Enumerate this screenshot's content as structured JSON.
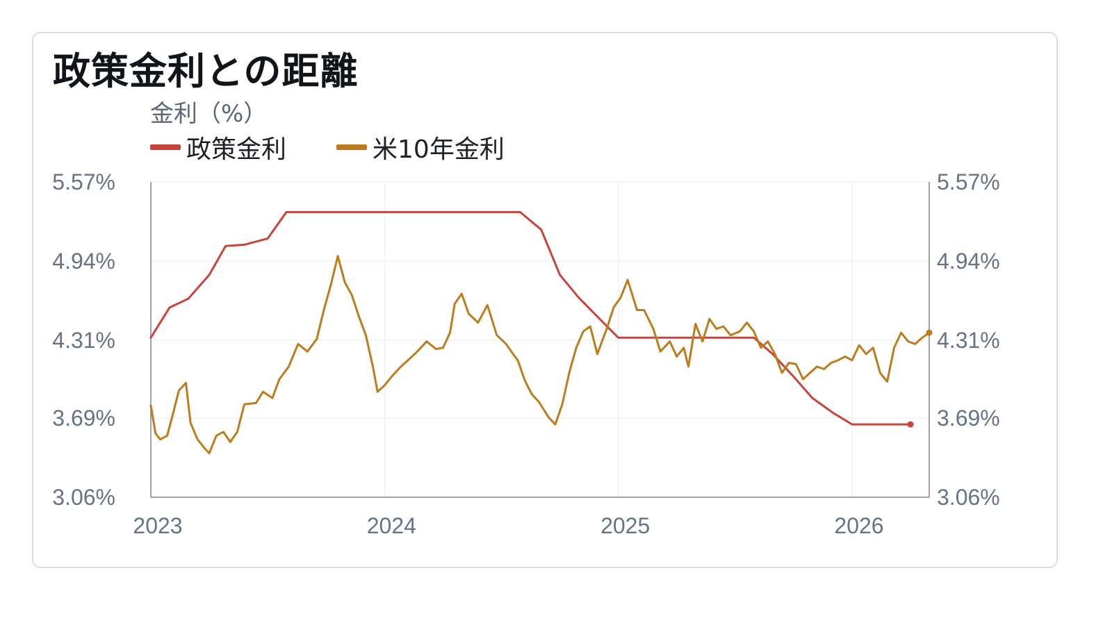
{
  "colors": {
    "policy": "#c8443a",
    "us10y": "#bd7c1c",
    "axis": "#7c8593",
    "grid": "#eceef2"
  },
  "chart_data": {
    "type": "line",
    "title": "政策金利との距離",
    "ylabel": "金利（%）",
    "xlabel": "",
    "ylim": [
      3.06,
      5.57
    ],
    "xlim": [
      2023.0,
      2026.33
    ],
    "yticks": [
      "5.57%",
      "4.94%",
      "4.31%",
      "3.69%",
      "3.06%"
    ],
    "ytick_values": [
      5.57,
      4.94,
      4.31,
      3.69,
      3.06
    ],
    "xticks": [
      "2023",
      "2024",
      "2025",
      "2026"
    ],
    "xtick_values": [
      2023,
      2024,
      2025,
      2026
    ],
    "grid": true,
    "legend_position": "top-left",
    "series": [
      {
        "name": "政策金利",
        "color": "#c8443a",
        "points": [
          [
            2023.0,
            4.33
          ],
          [
            2023.08,
            4.57
          ],
          [
            2023.16,
            4.64
          ],
          [
            2023.25,
            4.83
          ],
          [
            2023.32,
            5.06
          ],
          [
            2023.4,
            5.07
          ],
          [
            2023.5,
            5.12
          ],
          [
            2023.58,
            5.33
          ],
          [
            2024.58,
            5.33
          ],
          [
            2024.67,
            5.19
          ],
          [
            2024.75,
            4.83
          ],
          [
            2024.83,
            4.65
          ],
          [
            2024.92,
            4.48
          ],
          [
            2025.0,
            4.33
          ],
          [
            2025.58,
            4.33
          ],
          [
            2025.66,
            4.2
          ],
          [
            2025.75,
            4.02
          ],
          [
            2025.83,
            3.85
          ],
          [
            2025.92,
            3.73
          ],
          [
            2026.0,
            3.64
          ],
          [
            2026.25,
            3.64
          ]
        ]
      },
      {
        "name": "米10年金利",
        "color": "#bd7c1c",
        "points": [
          [
            2023.0,
            3.79
          ],
          [
            2023.02,
            3.57
          ],
          [
            2023.04,
            3.52
          ],
          [
            2023.07,
            3.55
          ],
          [
            2023.09,
            3.69
          ],
          [
            2023.12,
            3.91
          ],
          [
            2023.15,
            3.97
          ],
          [
            2023.17,
            3.65
          ],
          [
            2023.2,
            3.52
          ],
          [
            2023.23,
            3.45
          ],
          [
            2023.25,
            3.41
          ],
          [
            2023.28,
            3.55
          ],
          [
            2023.31,
            3.58
          ],
          [
            2023.34,
            3.5
          ],
          [
            2023.37,
            3.58
          ],
          [
            2023.4,
            3.8
          ],
          [
            2023.45,
            3.81
          ],
          [
            2023.48,
            3.9
          ],
          [
            2023.52,
            3.85
          ],
          [
            2023.55,
            4.0
          ],
          [
            2023.59,
            4.1
          ],
          [
            2023.63,
            4.28
          ],
          [
            2023.67,
            4.22
          ],
          [
            2023.71,
            4.32
          ],
          [
            2023.74,
            4.55
          ],
          [
            2023.77,
            4.75
          ],
          [
            2023.8,
            4.98
          ],
          [
            2023.83,
            4.77
          ],
          [
            2023.86,
            4.67
          ],
          [
            2023.89,
            4.5
          ],
          [
            2023.92,
            4.35
          ],
          [
            2023.95,
            4.1
          ],
          [
            2023.97,
            3.9
          ],
          [
            2024.0,
            3.95
          ],
          [
            2024.03,
            4.02
          ],
          [
            2024.07,
            4.1
          ],
          [
            2024.1,
            4.15
          ],
          [
            2024.14,
            4.22
          ],
          [
            2024.18,
            4.3
          ],
          [
            2024.22,
            4.24
          ],
          [
            2024.25,
            4.25
          ],
          [
            2024.28,
            4.37
          ],
          [
            2024.3,
            4.6
          ],
          [
            2024.33,
            4.68
          ],
          [
            2024.36,
            4.52
          ],
          [
            2024.4,
            4.45
          ],
          [
            2024.44,
            4.59
          ],
          [
            2024.48,
            4.35
          ],
          [
            2024.52,
            4.28
          ],
          [
            2024.55,
            4.2
          ],
          [
            2024.57,
            4.15
          ],
          [
            2024.6,
            3.99
          ],
          [
            2024.63,
            3.88
          ],
          [
            2024.66,
            3.82
          ],
          [
            2024.7,
            3.7
          ],
          [
            2024.73,
            3.64
          ],
          [
            2024.76,
            3.8
          ],
          [
            2024.79,
            4.05
          ],
          [
            2024.82,
            4.25
          ],
          [
            2024.85,
            4.38
          ],
          [
            2024.88,
            4.42
          ],
          [
            2024.91,
            4.2
          ],
          [
            2024.95,
            4.4
          ],
          [
            2024.98,
            4.57
          ],
          [
            2025.01,
            4.65
          ],
          [
            2025.04,
            4.79
          ],
          [
            2025.08,
            4.55
          ],
          [
            2025.11,
            4.55
          ],
          [
            2025.15,
            4.4
          ],
          [
            2025.18,
            4.22
          ],
          [
            2025.22,
            4.3
          ],
          [
            2025.25,
            4.18
          ],
          [
            2025.28,
            4.25
          ],
          [
            2025.3,
            4.1
          ],
          [
            2025.33,
            4.44
          ],
          [
            2025.36,
            4.3
          ],
          [
            2025.39,
            4.48
          ],
          [
            2025.42,
            4.4
          ],
          [
            2025.45,
            4.42
          ],
          [
            2025.48,
            4.35
          ],
          [
            2025.52,
            4.38
          ],
          [
            2025.55,
            4.45
          ],
          [
            2025.58,
            4.38
          ],
          [
            2025.61,
            4.25
          ],
          [
            2025.64,
            4.3
          ],
          [
            2025.67,
            4.2
          ],
          [
            2025.7,
            4.05
          ],
          [
            2025.73,
            4.13
          ],
          [
            2025.76,
            4.12
          ],
          [
            2025.79,
            4.0
          ],
          [
            2025.82,
            4.05
          ],
          [
            2025.85,
            4.1
          ],
          [
            2025.88,
            4.08
          ],
          [
            2025.91,
            4.13
          ],
          [
            2025.94,
            4.15
          ],
          [
            2025.97,
            4.18
          ],
          [
            2026.0,
            4.15
          ],
          [
            2026.03,
            4.27
          ],
          [
            2026.06,
            4.2
          ],
          [
            2026.09,
            4.25
          ],
          [
            2026.12,
            4.05
          ],
          [
            2026.15,
            3.98
          ],
          [
            2026.18,
            4.25
          ],
          [
            2026.21,
            4.37
          ],
          [
            2026.24,
            4.3
          ],
          [
            2026.27,
            4.28
          ],
          [
            2026.3,
            4.33
          ],
          [
            2026.33,
            4.37
          ]
        ]
      }
    ]
  }
}
